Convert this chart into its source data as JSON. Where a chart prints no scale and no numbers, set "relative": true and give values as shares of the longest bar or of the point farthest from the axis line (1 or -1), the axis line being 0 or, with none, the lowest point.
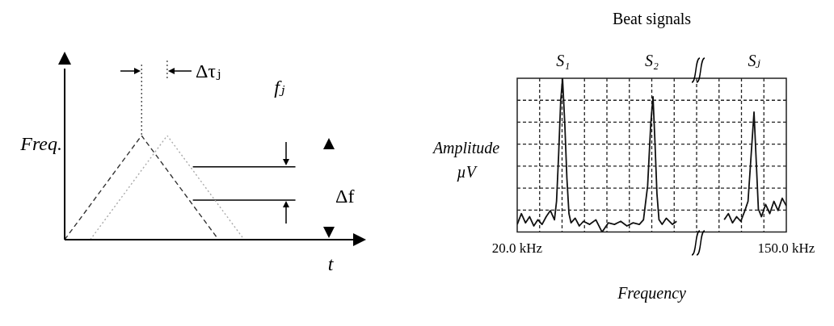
{
  "chart_data": [
    {
      "type": "line",
      "relative": true,
      "xlabel": "t",
      "ylabel": "Freq.",
      "categories": [
        null,
        null,
        null,
        null,
        null,
        null,
        null,
        null,
        null,
        null,
        null,
        null
      ],
      "series": [
        {
          "color": "#333333",
          "line_style": "dashed",
          "values": [
            0,
            0.333,
            0.667,
            1,
            0.667,
            0.333,
            0,
            null,
            null,
            null,
            null,
            null
          ]
        },
        {
          "color": "#aaaaaa",
          "line_style": "dotted",
          "values": [
            null,
            0,
            0.333,
            0.667,
            1,
            0.667,
            0.333,
            0,
            null,
            null,
            null,
            null
          ]
        },
        {
          "color": "#000000",
          "line_style": "solid",
          "values": [
            null,
            null,
            null,
            null,
            null,
            0.7,
            0.7,
            0.7,
            0.7,
            0.7,
            null,
            null
          ]
        },
        {
          "color": "#000000",
          "line_style": "solid",
          "values": [
            null,
            null,
            null,
            null,
            null,
            0.38,
            0.38,
            0.38,
            0.38,
            0.38,
            null,
            null
          ]
        }
      ],
      "annotations": [
        "Δτⱼ",
        "fⱼ",
        "Δf"
      ]
    },
    {
      "type": "line",
      "relative": true,
      "title": "Beat signals",
      "xlabel": "Frequency",
      "ylabel": "Amplitude µV",
      "grid": true,
      "xlim": [
        20,
        150
      ],
      "xticks": [
        {
          "value": 20,
          "label": "20.0 kHz"
        },
        {
          "value": 150,
          "label": "150.0 kHz"
        }
      ],
      "series": [
        {
          "color": "#111111",
          "x": [
            20,
            22,
            24,
            26,
            28,
            30,
            32,
            34,
            36,
            38,
            39,
            40,
            41,
            41.9,
            43,
            44,
            45,
            46,
            48,
            50,
            52,
            55,
            58,
            61,
            64,
            67,
            70,
            73,
            76,
            79,
            81,
            83,
            84.5,
            85.6,
            86.5,
            87.5,
            88.5,
            90,
            92,
            95,
            97,
            98,
            120,
            122,
            124,
            126,
            128,
            130,
            131.5,
            133,
            134.4,
            135.5,
            136.5,
            138,
            140,
            142,
            144,
            146,
            148,
            150
          ],
          "values": [
            0.05,
            0.12,
            0.06,
            0.1,
            0.04,
            0.08,
            0.05,
            0.1,
            0.14,
            0.08,
            0.2,
            0.5,
            0.85,
            1,
            0.7,
            0.35,
            0.12,
            0.06,
            0.09,
            0.04,
            0.07,
            0.05,
            0.08,
            0,
            0.06,
            0.05,
            0.07,
            0.04,
            0.06,
            0.05,
            0.08,
            0.3,
            0.7,
            0.88,
            0.6,
            0.25,
            0.08,
            0.05,
            0.09,
            0.05,
            0.07,
            null,
            0.08,
            0.12,
            0.06,
            0.1,
            0.07,
            0.14,
            0.2,
            0.5,
            0.78,
            0.45,
            0.15,
            0.1,
            0.18,
            0.12,
            0.2,
            0.14,
            0.22,
            0.17
          ]
        }
      ],
      "annotations": [
        "S₁",
        "S₂",
        "Sⱼ"
      ]
    }
  ]
}
